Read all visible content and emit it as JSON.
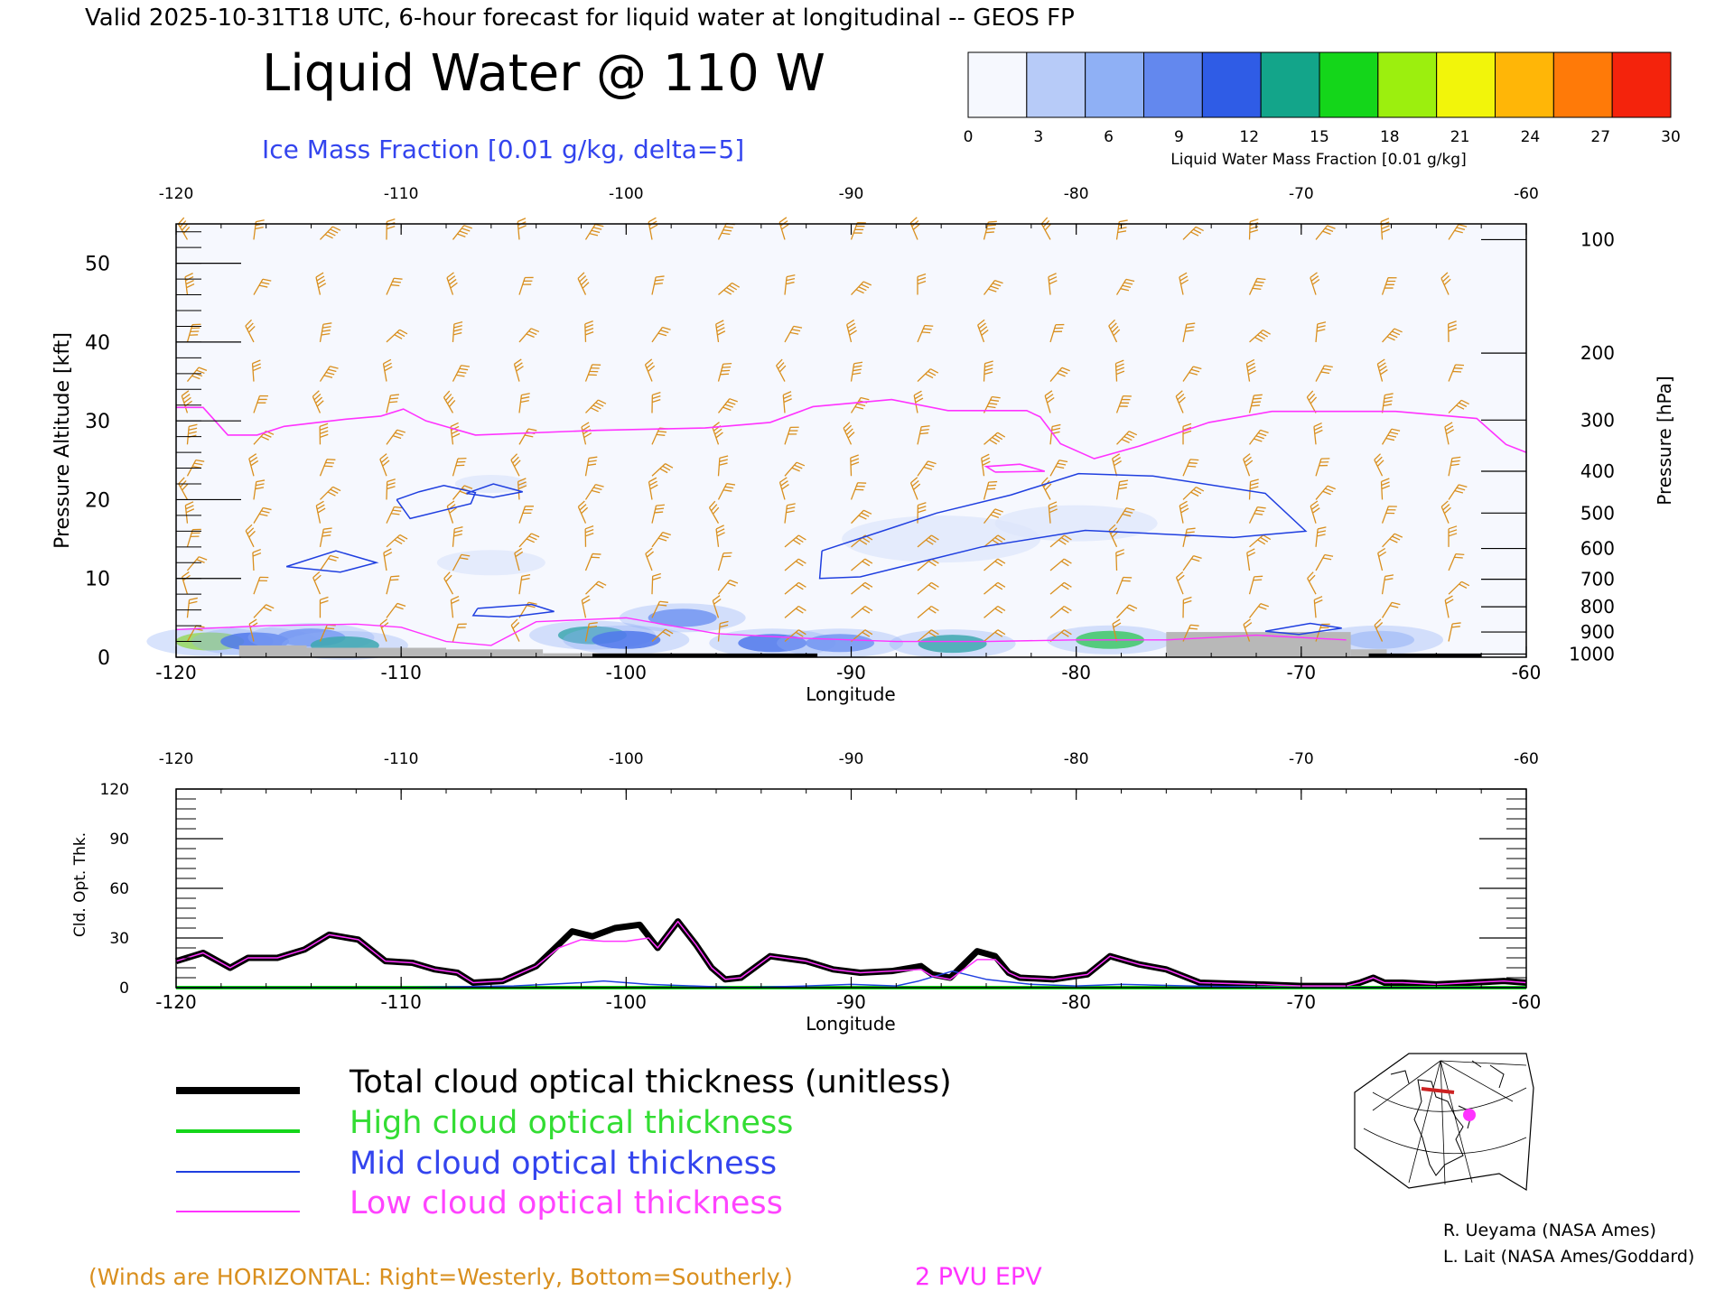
{
  "header": {
    "valid_line": "Valid 2025-10-31T18 UTC, 6-hour forecast for liquid water at longitudinal -- GEOS FP",
    "main_title": "Liquid Water @ 110 W",
    "subtitle": "Ice Mass Fraction [0.01 g/kg, delta=5]"
  },
  "colorbar": {
    "label": "Liquid Water Mass Fraction [0.01 g/kg]",
    "ticks": [
      "0",
      "3",
      "6",
      "9",
      "12",
      "15",
      "18",
      "21",
      "24",
      "27",
      "30"
    ],
    "colors": [
      "#f6f8fe",
      "#b7cbf8",
      "#8fb0f5",
      "#6388ee",
      "#2f5ce6",
      "#13a58a",
      "#14d61a",
      "#9cef0e",
      "#f2f50a",
      "#ffb607",
      "#ff7a08",
      "#f4230c"
    ]
  },
  "colors": {
    "wind_barb": "#d98f1e",
    "epv": "#ff33ff",
    "ice_contour": "#1f3fe0",
    "terrain": "#b8b8b8",
    "total": "#000000",
    "high": "#14d61a",
    "mid": "#1f3fe0",
    "low": "#ff33ff"
  },
  "chart_data": [
    {
      "type": "heatmap",
      "title": "Liquid Water @ 110 W",
      "subtitle": "Ice Mass Fraction [0.01 g/kg, delta=5]",
      "xlabel": "Longitude",
      "ylabel_left": "Pressure Altitude [kft]",
      "ylabel_right": "Pressure [hPa]",
      "xlim": [
        -120,
        -60
      ],
      "ylim": [
        0,
        55
      ],
      "x_ticks": [
        "-120",
        "-110",
        "-100",
        "-90",
        "-80",
        "-70",
        "-60"
      ],
      "y_ticks": [
        "0",
        "10",
        "20",
        "30",
        "40",
        "50"
      ],
      "right_ticks": [
        "100",
        "200",
        "300",
        "400",
        "500",
        "600",
        "700",
        "800",
        "900",
        "1000"
      ],
      "right_tick_altitudes_kft": [
        53,
        38.6,
        30.1,
        23.6,
        18.3,
        13.8,
        9.9,
        6.4,
        3.2,
        0.4
      ],
      "epv_2pvu_line": [
        [
          -120,
          31.7
        ],
        [
          -118.8,
          31.7
        ],
        [
          -117.7,
          28.2
        ],
        [
          -116.4,
          28.2
        ],
        [
          -115.2,
          29.3
        ],
        [
          -112.5,
          30.2
        ],
        [
          -110.9,
          30.6
        ],
        [
          -109.9,
          31.5
        ],
        [
          -108.9,
          30
        ],
        [
          -106.7,
          28.2
        ],
        [
          -101.3,
          28.8
        ],
        [
          -96.5,
          29.1
        ],
        [
          -93.6,
          29.8
        ],
        [
          -91.7,
          31.8
        ],
        [
          -88.2,
          32.7
        ],
        [
          -85.7,
          31.3
        ],
        [
          -82.2,
          31.3
        ],
        [
          -81.6,
          30.5
        ],
        [
          -80.7,
          27.1
        ],
        [
          -79.2,
          25.2
        ],
        [
          -77.2,
          26.8
        ],
        [
          -74.1,
          29.8
        ],
        [
          -71.3,
          31.2
        ],
        [
          -65.8,
          31.2
        ],
        [
          -62.2,
          30.3
        ],
        [
          -60.9,
          27
        ],
        [
          -60,
          26
        ]
      ],
      "epv_small_loop": [
        [
          -83.6,
          23.5
        ],
        [
          -81.4,
          23.6
        ],
        [
          -82.5,
          24.5
        ],
        [
          -84,
          24.2
        ],
        [
          -83.6,
          23.5
        ]
      ],
      "ice_contours": [
        [
          [
            -110.2,
            20
          ],
          [
            -109.2,
            21
          ],
          [
            -108.1,
            21.8
          ],
          [
            -106.7,
            20.9
          ],
          [
            -106.9,
            19.5
          ],
          [
            -109.6,
            17.6
          ],
          [
            -110.2,
            20
          ]
        ],
        [
          [
            -107.1,
            20.8
          ],
          [
            -105.9,
            22
          ],
          [
            -104.6,
            21
          ],
          [
            -105.9,
            20.3
          ],
          [
            -107.1,
            20.8
          ]
        ],
        [
          [
            -115.1,
            11.5
          ],
          [
            -112.9,
            13.5
          ],
          [
            -111.1,
            12
          ],
          [
            -112.7,
            10.8
          ],
          [
            -115.1,
            11.5
          ]
        ],
        [
          [
            -106.6,
            6.2
          ],
          [
            -104.2,
            6.7
          ],
          [
            -103.2,
            5.8
          ],
          [
            -105.2,
            5.1
          ],
          [
            -106.8,
            5.3
          ],
          [
            -106.6,
            6.2
          ]
        ],
        [
          [
            -91.3,
            13.5
          ],
          [
            -88.1,
            16.5
          ],
          [
            -86.2,
            18.3
          ],
          [
            -82.9,
            20.6
          ],
          [
            -79.9,
            23.3
          ],
          [
            -76.6,
            23
          ],
          [
            -71.6,
            20.8
          ],
          [
            -69.8,
            16
          ],
          [
            -73,
            15.2
          ],
          [
            -79.6,
            16.1
          ],
          [
            -84.2,
            14
          ],
          [
            -89.6,
            10.2
          ],
          [
            -91.4,
            10
          ],
          [
            -91.3,
            13.5
          ]
        ],
        [
          [
            -71.6,
            3.3
          ],
          [
            -69.6,
            4.3
          ],
          [
            -68.2,
            3.7
          ],
          [
            -70.1,
            2.9
          ],
          [
            -71.6,
            3.3
          ]
        ]
      ],
      "cloud_blobs_kft": [
        {
          "lon": -118.5,
          "alt": 2.0,
          "level": 21
        },
        {
          "lon": -116.5,
          "alt": 2.0,
          "level": 12
        },
        {
          "lon": -114.0,
          "alt": 2.5,
          "level": 9
        },
        {
          "lon": -112.5,
          "alt": 1.5,
          "level": 15
        },
        {
          "lon": -101.5,
          "alt": 2.8,
          "level": 15
        },
        {
          "lon": -100.0,
          "alt": 2.2,
          "level": 12
        },
        {
          "lon": -97.5,
          "alt": 5.0,
          "level": 10
        },
        {
          "lon": -93.5,
          "alt": 1.8,
          "level": 13
        },
        {
          "lon": -90.5,
          "alt": 1.8,
          "level": 9
        },
        {
          "lon": -85.5,
          "alt": 1.7,
          "level": 16
        },
        {
          "lon": -78.5,
          "alt": 2.2,
          "level": 17
        },
        {
          "lon": -66.5,
          "alt": 2.2,
          "level": 5
        }
      ],
      "wind_note": "(Winds are HORIZONTAL: Right=Westerly, Bottom=Southerly.)",
      "epv_note": "2 PVU EPV"
    },
    {
      "type": "line",
      "xlabel": "Longitude",
      "ylabel": "Cld. Opt. Thk.",
      "xlim": [
        -120,
        -60
      ],
      "ylim": [
        0,
        120
      ],
      "x_ticks": [
        "-120",
        "-110",
        "-100",
        "-90",
        "-80",
        "-70",
        "-60"
      ],
      "y_ticks": [
        "0",
        "30",
        "60",
        "90",
        "120"
      ],
      "series": [
        {
          "name": "Total cloud optical thickness (unitless)",
          "x": [
            -120,
            -118.8,
            -117.6,
            -116.8,
            -115.5,
            -114.3,
            -113.2,
            -111.9,
            -110.7,
            -109.5,
            -108.5,
            -107.5,
            -106.8,
            -105.5,
            -104,
            -103,
            -102.4,
            -101.5,
            -100.5,
            -99.4,
            -98.6,
            -97.7,
            -96.9,
            -96.2,
            -95.6,
            -94.9,
            -93.6,
            -92,
            -90.8,
            -89.6,
            -88.2,
            -86.9,
            -86.4,
            -85.6,
            -84.4,
            -83.6,
            -83,
            -82.5,
            -81,
            -79.5,
            -78.5,
            -77.2,
            -76,
            -74.5,
            -72,
            -70,
            -68,
            -67.4,
            -66.8,
            -66.3,
            -65.5,
            -64,
            -62.5,
            -61,
            -60
          ],
          "values": [
            16,
            21,
            12,
            18,
            18,
            23,
            32,
            29,
            16,
            15,
            11,
            9,
            3,
            4,
            13,
            26,
            34,
            31,
            36,
            38,
            24,
            40,
            26,
            12,
            5,
            6,
            19,
            16,
            11,
            9,
            10,
            13,
            8,
            6,
            22,
            19,
            9,
            6,
            5,
            8,
            19,
            14,
            11,
            3,
            2,
            1,
            1,
            3,
            6,
            3,
            3,
            2,
            3,
            4,
            3
          ]
        },
        {
          "name": "High cloud optical thickness",
          "x": [
            -120,
            -60
          ],
          "values": [
            0,
            0
          ]
        },
        {
          "name": "Mid cloud optical thickness",
          "x": [
            -120,
            -110,
            -105,
            -102,
            -101,
            -99,
            -97,
            -95,
            -92,
            -90,
            -88,
            -87,
            -85.5,
            -84,
            -82,
            -80,
            -78,
            -75,
            -70,
            -66,
            -60
          ],
          "values": [
            0,
            0,
            1,
            3,
            4,
            2,
            1,
            0,
            1,
            2,
            1,
            4,
            10,
            5,
            2,
            1,
            2,
            1,
            0,
            0,
            0
          ]
        },
        {
          "name": "Low cloud optical thickness",
          "x": [
            -120,
            -118.8,
            -117.6,
            -116.8,
            -115.5,
            -114.3,
            -113.2,
            -111.9,
            -110.7,
            -109.5,
            -108.5,
            -107.5,
            -106.8,
            -105.5,
            -104,
            -103,
            -102,
            -101,
            -100,
            -99,
            -98.6,
            -97.7,
            -96.9,
            -96.2,
            -95.6,
            -94.9,
            -93.6,
            -92,
            -90.8,
            -89.6,
            -88.2,
            -86.9,
            -86.4,
            -85.6,
            -84.4,
            -83.6,
            -83,
            -82.5,
            -81,
            -79.5,
            -78.5,
            -77.2,
            -76,
            -74.5,
            -72,
            -70,
            -68,
            -67.4,
            -66.8,
            -66.3,
            -65.5,
            -64,
            -62.5,
            -61,
            -60
          ],
          "values": [
            16,
            21,
            12,
            18,
            18,
            23,
            32,
            29,
            16,
            15,
            11,
            9,
            3,
            4,
            13,
            24,
            29,
            28,
            28,
            30,
            24,
            40,
            26,
            12,
            5,
            6,
            19,
            16,
            11,
            9,
            10,
            11,
            7,
            5,
            17,
            17,
            9,
            6,
            5,
            8,
            19,
            14,
            11,
            3,
            2,
            1,
            1,
            3,
            6,
            3,
            3,
            2,
            3,
            4,
            3
          ]
        }
      ]
    }
  ],
  "legend": {
    "total": "Total cloud optical thickness (unitless)",
    "high": "High cloud optical thickness",
    "mid": "Mid cloud optical thickness",
    "low": "Low cloud optical thickness"
  },
  "credits": {
    "line1": "R. Ueyama (NASA Ames)",
    "line2": "L. Lait (NASA Ames/Goddard)"
  },
  "notes": {
    "winds": "(Winds are HORIZONTAL: Right=Westerly, Bottom=Southerly.)",
    "epv": "2 PVU EPV"
  }
}
